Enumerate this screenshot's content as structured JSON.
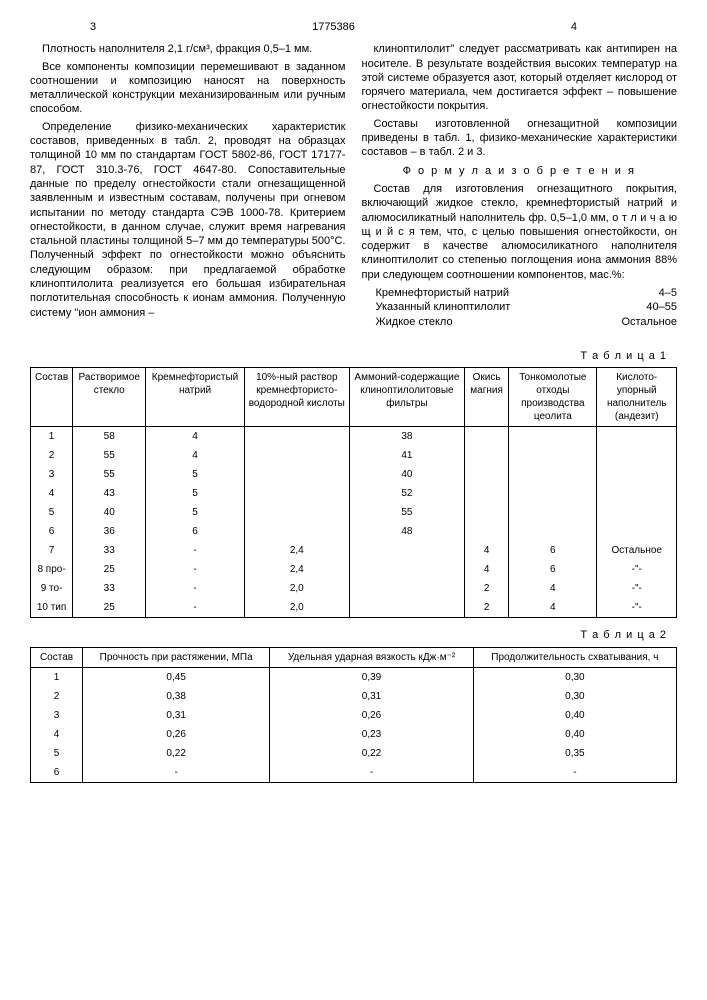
{
  "pageLeft": "3",
  "docNum": "1775386",
  "pageRight": "4",
  "leftCol": {
    "p1": "Плотность наполнителя 2,1 г/см³, фракция 0,5–1 мм.",
    "p2": "Все компоненты композиции перемешивают в заданном соотношении и композицию наносят на поверхность металлической конструкции механизированным или ручным способом.",
    "p3": "Определение физико-механических характеристик составов, приведенных в табл. 2, проводят на образцах толщиной 10 мм по стандартам ГОСТ 5802-86, ГОСТ 17177-87, ГОСТ 310.3-76, ГОСТ 4647-80. Сопоставительные данные по пределу огнестойкости стали огнезащищенной заявленным и известным составам, получены при огневом испытании по методу стандарта СЭВ 1000-78. Критерием огнестойкости, в данном случае, служит время нагревания стальной пластины толщиной 5–7 мм до температуры 500°С. Полученный эффект по огнестойкости можно объяснить следующим образом: при предлагаемой обработке клиноптилолита реализуется его большая избирательная поглотительная способность к ионам аммония. Полученную систему \"ион аммония –"
  },
  "rightCol": {
    "p1": "клиноптилолит\" следует рассматривать как антипирен на носителе. В результате воздействия высоких температур на этой системе образуется азот, который отделяет кислород от горячего материала, чем достигается эффект – повышение огнестойкости покрытия.",
    "p2": "Составы изготовленной огнезащитной композиции приведены в табл. 1, физико-механические характеристики составов – в табл. 2 и 3.",
    "formulaTitle": "Ф о р м у л а  и з о б р е т е н и я",
    "p3": "Состав для изготовления огнезащитного покрытия, включающий жидкое стекло, кремнефтористый натрий и алюмосиликатный наполнитель фр. 0,5–1,0 мм, о т л и ч а ю щ и й с я  тем, что, с целью повышения огнестойкости, он содержит в качестве алюмосиликатного наполнителя клиноптилолит со степенью поглощения иона аммония 88% при следующем соотношении компонентов, мас.%:",
    "comps": [
      {
        "name": "Кремнефтористый натрий",
        "val": "4–5"
      },
      {
        "name": "Указанный клиноптилолит",
        "val": "40–55"
      },
      {
        "name": "Жидкое стекло",
        "val": "Остальное"
      }
    ]
  },
  "table1": {
    "label": "Т а б л и ц а  1",
    "headers": [
      "Состав",
      "Растворимое стекло",
      "Кремнефтористый натрий",
      "10%-ный раствор кремнефтористо-водородной кислоты",
      "Аммоний-содержащие клиноптилолитовые фильтры",
      "Окись магния",
      "Тонкомолотые отходы производства цеолита",
      "Кислото-упорный наполнитель (андезит)"
    ],
    "rows": [
      [
        "1",
        "58",
        "4",
        "",
        "38",
        "",
        "",
        ""
      ],
      [
        "2",
        "55",
        "4",
        "",
        "41",
        "",
        "",
        ""
      ],
      [
        "3",
        "55",
        "5",
        "",
        "40",
        "",
        "",
        ""
      ],
      [
        "4",
        "43",
        "5",
        "",
        "52",
        "",
        "",
        ""
      ],
      [
        "5",
        "40",
        "5",
        "",
        "55",
        "",
        "",
        ""
      ],
      [
        "6",
        "36",
        "6",
        "",
        "48",
        "",
        "",
        ""
      ],
      [
        "7",
        "33",
        "-",
        "2,4",
        "",
        "4",
        "6",
        "Остальное"
      ],
      [
        "8 про-",
        "25",
        "-",
        "2,4",
        "",
        "4",
        "6",
        "-\"-"
      ],
      [
        "9 то-",
        "33",
        "-",
        "2,0",
        "",
        "2",
        "4",
        "-\"-"
      ],
      [
        "10 тип",
        "25",
        "-",
        "2,0",
        "",
        "2",
        "4",
        "-\"-"
      ]
    ]
  },
  "table2": {
    "label": "Т а б л и ц а  2",
    "headers": [
      "Состав",
      "Прочность при растяжении, МПа",
      "Удельная ударная вязкость кДж·м⁻²",
      "Продолжительность схватывания, ч"
    ],
    "rows": [
      [
        "1",
        "0,45",
        "0,39",
        "0,30"
      ],
      [
        "2",
        "0,38",
        "0,31",
        "0,30"
      ],
      [
        "3",
        "0,31",
        "0,26",
        "0,40"
      ],
      [
        "4",
        "0,26",
        "0,23",
        "0,40"
      ],
      [
        "5",
        "0,22",
        "0,22",
        "0,35"
      ],
      [
        "6",
        "-",
        "-",
        "-"
      ]
    ]
  }
}
